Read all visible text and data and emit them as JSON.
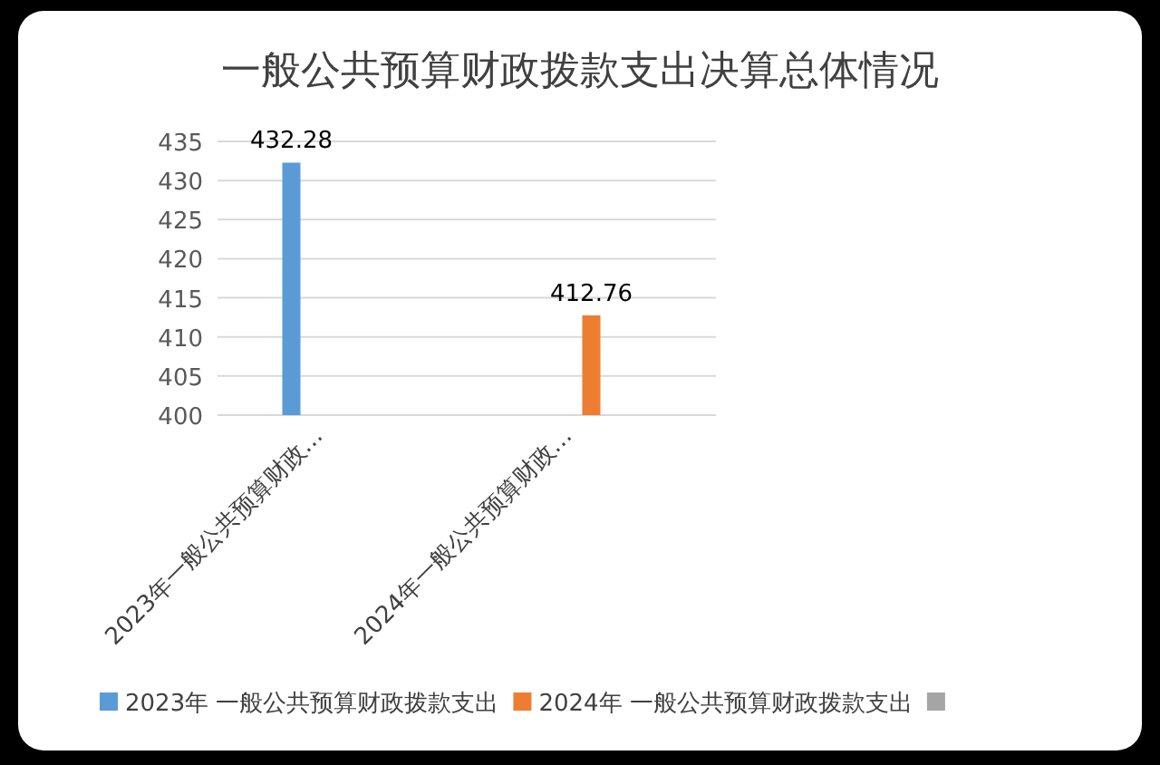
{
  "chart_data": {
    "type": "bar",
    "title": "一般公共预算财政拨款支出决算总体情况",
    "categories": [
      "2023年一般公共预算财政…",
      "2024年一般公共预算财政…"
    ],
    "series": [
      {
        "name": "2023年 一般公共预算财政拨款支出",
        "color": "#5b9bd5",
        "values": [
          432.28,
          null
        ]
      },
      {
        "name": "2024年 一般公共预算财政拨款支出",
        "color": "#ed7d31",
        "values": [
          null,
          412.76
        ]
      },
      {
        "color": "#a5a5a5",
        "values": [
          null,
          null
        ]
      }
    ],
    "ylim": [
      400,
      435
    ],
    "yticks": [
      400,
      405,
      410,
      415,
      420,
      425,
      430,
      435
    ],
    "grid": "y",
    "data_labels": true,
    "legend": "bottom"
  }
}
